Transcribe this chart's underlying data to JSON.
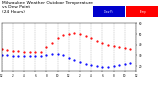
{
  "title": "Milwaukee Weather Outdoor Temperature\nvs Dew Point\n(24 Hours)",
  "title_fontsize": 3.2,
  "background_color": "#ffffff",
  "grid_color": "#aaaaaa",
  "xlim": [
    0,
    24
  ],
  "ylim": [
    15,
    60
  ],
  "yticks": [
    20,
    30,
    40,
    50,
    60
  ],
  "xticks": [
    0,
    2,
    4,
    6,
    8,
    10,
    12,
    14,
    16,
    18,
    20,
    22,
    24
  ],
  "xtick_labels": [
    "12",
    "2",
    "4",
    "6",
    "8",
    "10",
    "12",
    "2",
    "4",
    "6",
    "8",
    "10",
    "12"
  ],
  "temp_color": "#ff0000",
  "dew_color": "#0000ff",
  "temp_x": [
    0,
    1,
    2,
    3,
    4,
    5,
    6,
    7,
    8,
    9,
    10,
    11,
    12,
    13,
    14,
    15,
    16,
    17,
    18,
    19,
    20,
    21,
    22,
    23
  ],
  "temp_y": [
    36,
    35,
    34,
    34,
    33,
    33,
    33,
    33,
    38,
    42,
    46,
    49,
    50,
    51,
    50,
    48,
    46,
    44,
    42,
    40,
    39,
    38,
    37,
    36
  ],
  "dew_x": [
    0,
    1,
    2,
    3,
    4,
    5,
    6,
    7,
    8,
    9,
    10,
    11,
    12,
    13,
    14,
    15,
    16,
    17,
    18,
    19,
    20,
    21,
    22,
    23
  ],
  "dew_y": [
    30,
    30,
    29,
    29,
    29,
    29,
    29,
    29,
    30,
    31,
    31,
    30,
    28,
    26,
    24,
    22,
    21,
    20,
    19,
    19,
    20,
    21,
    22,
    23
  ],
  "legend_temp_label": "Temp",
  "legend_dew_label": "Dew Pt",
  "marker_size": 1.2
}
